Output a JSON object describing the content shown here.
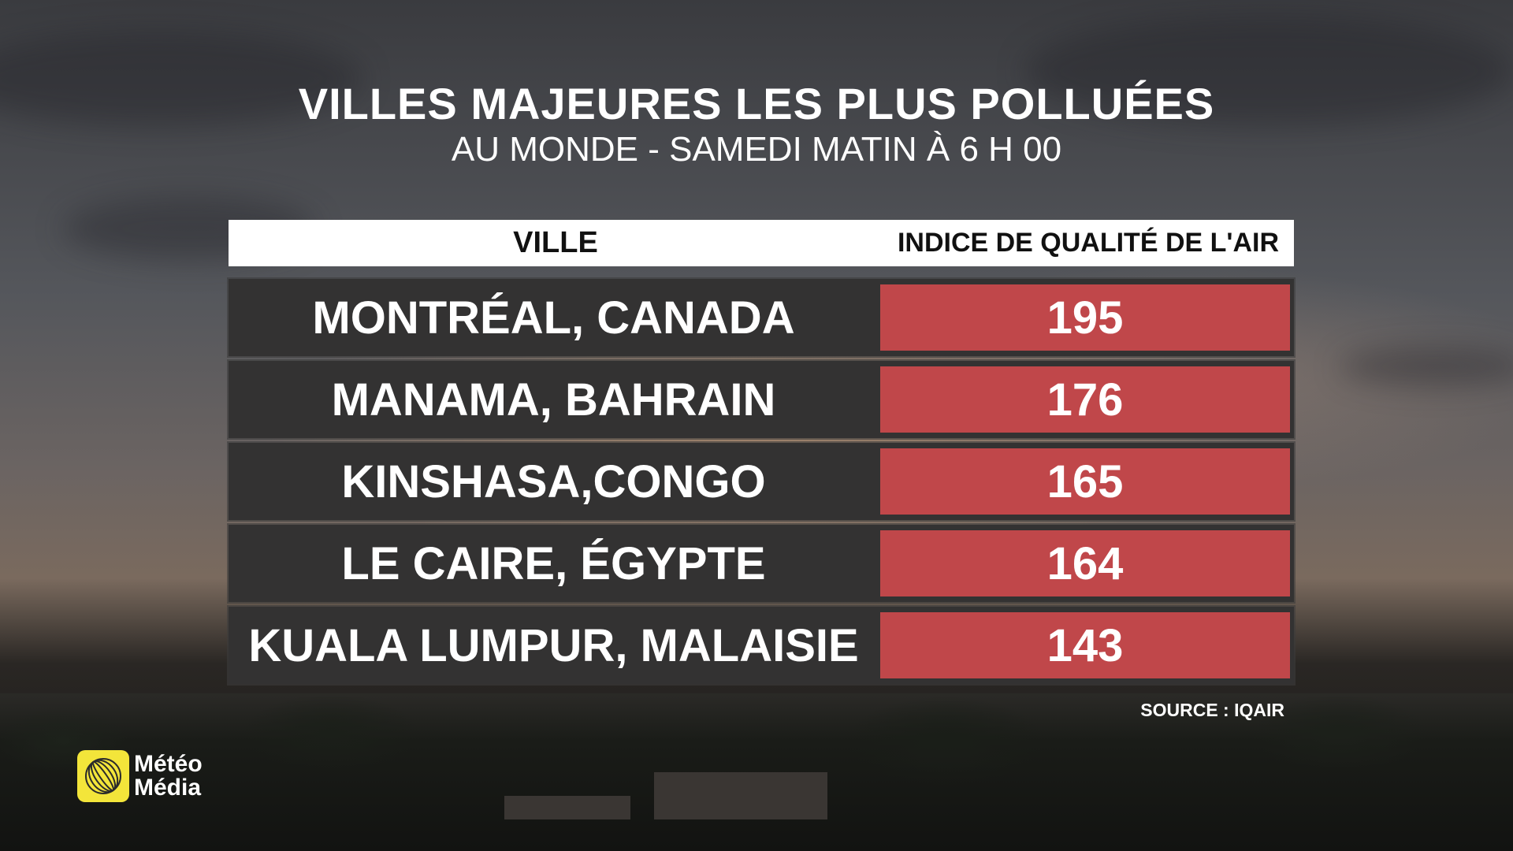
{
  "title": "VILLES MAJEURES LES PLUS POLLUÉES",
  "subtitle": "AU MONDE - SAMEDI MATIN À 6 H 00",
  "table": {
    "headers": {
      "city": "VILLE",
      "aqi": "INDICE DE QUALITÉ DE L'AIR"
    },
    "rows": [
      {
        "city": "MONTRÉAL, CANADA",
        "aqi": "195"
      },
      {
        "city": "MANAMA, BAHRAIN",
        "aqi": "176"
      },
      {
        "city": "KINSHASA,CONGO",
        "aqi": "165"
      },
      {
        "city": "LE CAIRE, ÉGYPTE",
        "aqi": "164"
      },
      {
        "city": "KUALA LUMPUR, MALAISIE",
        "aqi": "143"
      }
    ]
  },
  "source": "SOURCE : IQAIR",
  "logo": {
    "line1": "Météo",
    "line2": "Média",
    "icon": "meteomedia-globe-icon"
  },
  "colors": {
    "aqi_cell": "#c0474a",
    "row_bg": "#333232",
    "header_bg": "#ffffff",
    "logo_yellow": "#f3e53a"
  }
}
